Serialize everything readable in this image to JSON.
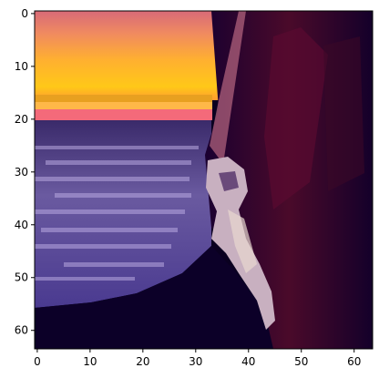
{
  "figure": {
    "image_description": "pixelated sunset-sea scene",
    "x_tick_labels": [
      "0",
      "10",
      "20",
      "30",
      "40",
      "50",
      "60"
    ],
    "y_tick_labels": [
      "0",
      "10",
      "20",
      "30",
      "40",
      "50",
      "60"
    ]
  },
  "colors": {
    "sky_top": "#e07a6a",
    "sky_mid": "#ffb020",
    "horizon": "#ff6e78",
    "sea_light": "#b8a6d8",
    "sea_dark": "#3a2f78",
    "curtain": "#12002e",
    "curtain_red": "#5a0f30",
    "figure": "#d8c0c8"
  }
}
